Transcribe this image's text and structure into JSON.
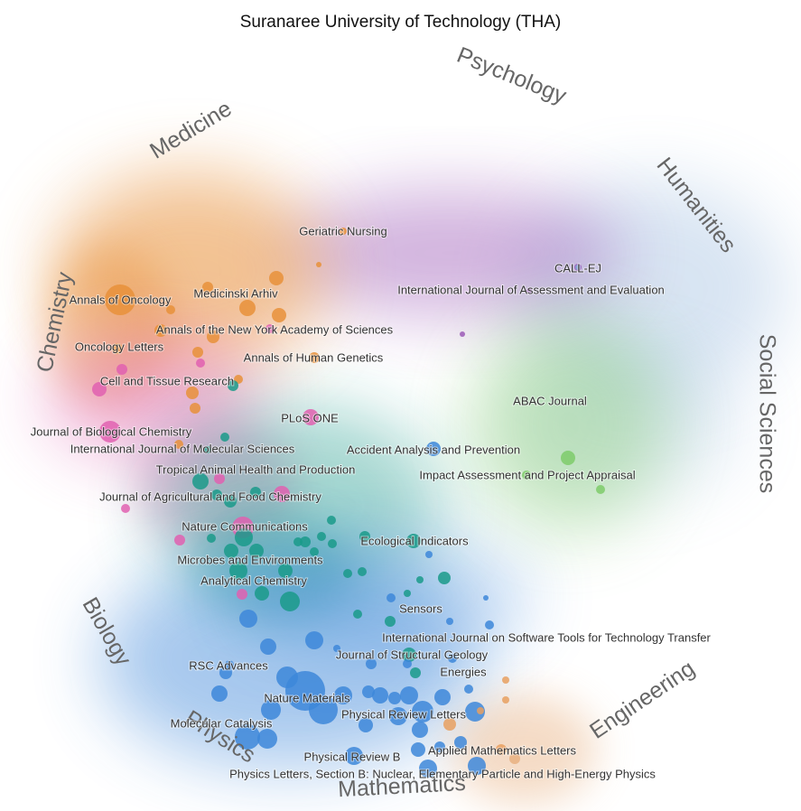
{
  "chart_data": {
    "type": "scatter",
    "title": "Suranaree University of Technology (THA)",
    "colors": {
      "medicine": "#e8913a",
      "psychology": "#9b59b6",
      "humanities": "#7fa8d6",
      "social": "#7ecb6a",
      "engineering": "#e8a060",
      "mathematics": "#e8b080",
      "physics": "#3d87d9",
      "biology": "#1a9a8a",
      "chemistry": "#e060b0"
    },
    "disciplines": [
      {
        "key": "medicine",
        "label": "Medicine"
      },
      {
        "key": "psychology",
        "label": "Psychology"
      },
      {
        "key": "humanities",
        "label": "Humanities"
      },
      {
        "key": "social",
        "label": "Social Sciences"
      },
      {
        "key": "engineering",
        "label": "Engineering"
      },
      {
        "key": "mathematics",
        "label": "Mathematics"
      },
      {
        "key": "physics",
        "label": "Physics"
      },
      {
        "key": "biology",
        "label": "Biology"
      },
      {
        "key": "chemistry",
        "label": "Chemistry"
      }
    ],
    "journals": [
      {
        "label": "Geriatric Nursing",
        "group": "medicine"
      },
      {
        "label": "CALL-EJ",
        "group": "humanities"
      },
      {
        "label": "International Journal of Assessment and Evaluation",
        "group": "psychology"
      },
      {
        "label": "Annals of Oncology",
        "group": "medicine"
      },
      {
        "label": "Medicinski Arhiv",
        "group": "medicine"
      },
      {
        "label": "Annals of the New York Academy of Sciences",
        "group": "medicine"
      },
      {
        "label": "Oncology Letters",
        "group": "medicine"
      },
      {
        "label": "Annals of Human Genetics",
        "group": "medicine"
      },
      {
        "label": "Cell and Tissue Research",
        "group": "chemistry"
      },
      {
        "label": "ABAC Journal",
        "group": "social"
      },
      {
        "label": "PLoS ONE",
        "group": "chemistry"
      },
      {
        "label": "Journal of Biological Chemistry",
        "group": "chemistry"
      },
      {
        "label": "International Journal of Molecular Sciences",
        "group": "chemistry"
      },
      {
        "label": "Accident Analysis and Prevention",
        "group": "physics"
      },
      {
        "label": "Impact Assessment and Project Appraisal",
        "group": "social"
      },
      {
        "label": "Tropical Animal Health and Production",
        "group": "biology"
      },
      {
        "label": "Journal of Agricultural and Food Chemistry",
        "group": "chemistry"
      },
      {
        "label": "Nature Communications",
        "group": "chemistry"
      },
      {
        "label": "Ecological Indicators",
        "group": "biology"
      },
      {
        "label": "Microbes and Environments",
        "group": "biology"
      },
      {
        "label": "Analytical Chemistry",
        "group": "biology"
      },
      {
        "label": "Sensors",
        "group": "biology"
      },
      {
        "label": "International Journal on Software Tools for Technology Transfer",
        "group": "physics"
      },
      {
        "label": "Journal of Structural Geology",
        "group": "biology"
      },
      {
        "label": "RSC Advances",
        "group": "physics"
      },
      {
        "label": "Energies",
        "group": "physics"
      },
      {
        "label": "Nature Materials",
        "group": "physics"
      },
      {
        "label": "Physical Review Letters",
        "group": "physics"
      },
      {
        "label": "Molecular Catalysis",
        "group": "physics"
      },
      {
        "label": "Applied Mathematics Letters",
        "group": "engineering"
      },
      {
        "label": "Physical Review B",
        "group": "physics"
      },
      {
        "label": "Physics Letters, Section B: Nuclear, Elementary Particle and High-Energy Physics",
        "group": "physics"
      }
    ]
  }
}
